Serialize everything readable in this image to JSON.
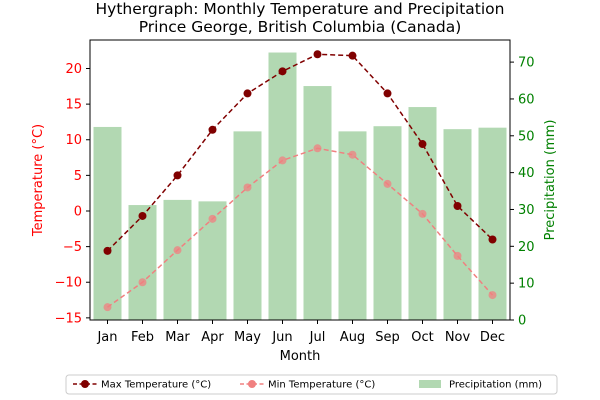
{
  "chart_data": {
    "type": "bar+line",
    "title": "Hythergraph: Monthly Temperature and Precipitation",
    "subtitle": "Prince George, British Columbia (Canada)",
    "xlabel": "Month",
    "ylabel_left": "Temperature (°C)",
    "ylabel_right": "Precipitation (mm)",
    "categories": [
      "Jan",
      "Feb",
      "Mar",
      "Apr",
      "May",
      "Jun",
      "Jul",
      "Aug",
      "Sep",
      "Oct",
      "Nov",
      "Dec"
    ],
    "ylim_left": [
      -15.3,
      24.0
    ],
    "ylim_right": [
      0,
      76
    ],
    "yticks_left": [
      -15,
      -10,
      -5,
      0,
      5,
      10,
      15,
      20
    ],
    "yticks_right": [
      0,
      10,
      20,
      30,
      40,
      50,
      60,
      70
    ],
    "series": [
      {
        "name": "Max Temperature (°C)",
        "axis": "left",
        "kind": "line",
        "color": "#800000",
        "values": [
          -5.6,
          -0.7,
          5.0,
          11.4,
          16.5,
          19.6,
          22.0,
          21.8,
          16.5,
          9.4,
          0.7,
          -4.0
        ]
      },
      {
        "name": "Min Temperature (°C)",
        "axis": "left",
        "kind": "line",
        "color": "#f08080",
        "values": [
          -13.5,
          -10.0,
          -5.5,
          -1.1,
          3.3,
          7.1,
          8.8,
          7.9,
          3.8,
          -0.4,
          -6.3,
          -11.8
        ]
      },
      {
        "name": "Precipitation (mm)",
        "axis": "right",
        "kind": "bar",
        "color": "#b2d8b2",
        "values": [
          52.4,
          31.2,
          32.6,
          32.2,
          51.2,
          72.6,
          63.5,
          51.2,
          52.6,
          57.8,
          51.8,
          52.2
        ]
      }
    ],
    "legend_position": "bottom-center",
    "colors": {
      "left_axis": "#ff0000",
      "right_axis": "#008000"
    }
  }
}
